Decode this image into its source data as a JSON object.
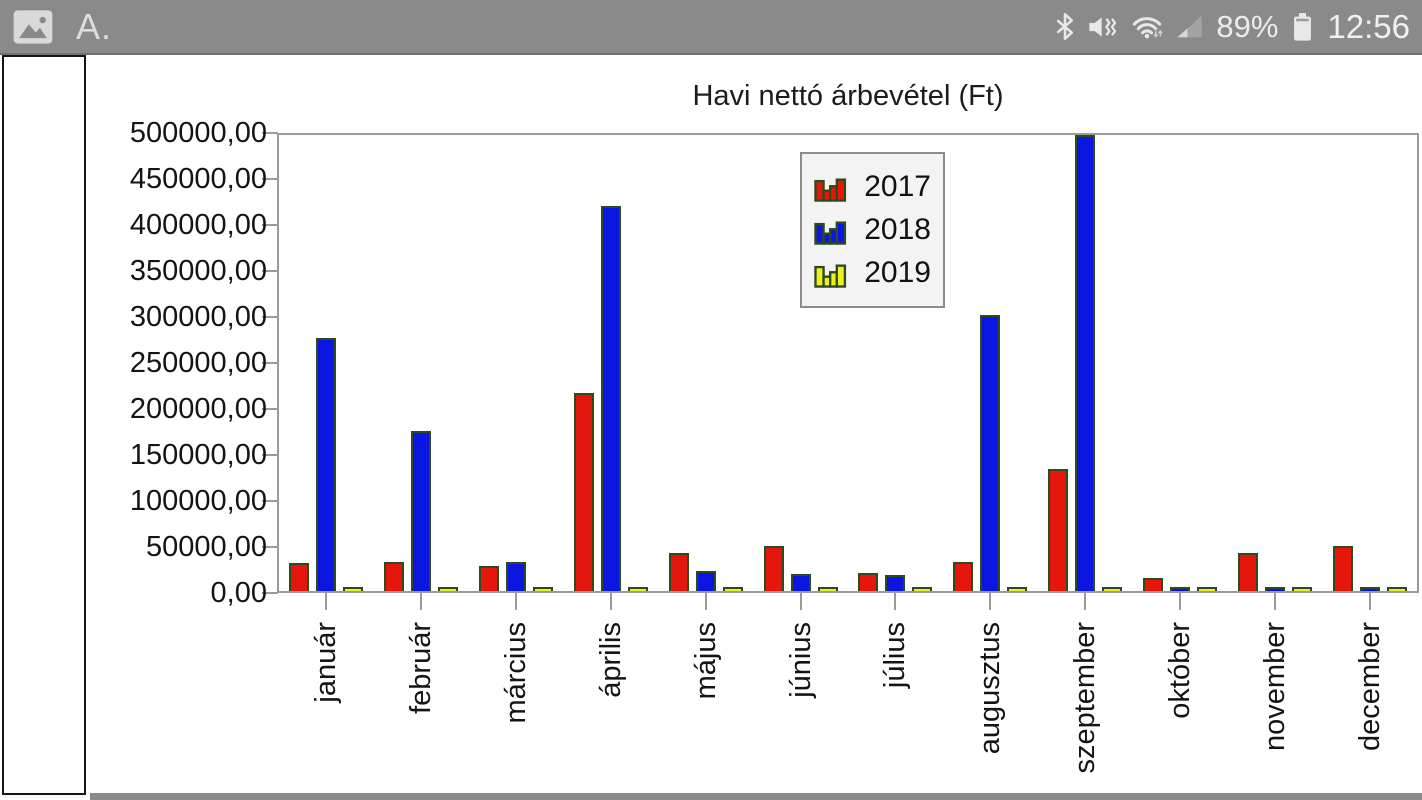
{
  "status_bar": {
    "bg_color": "#8a8a8a",
    "font_icon_label": "A.",
    "battery_percent": "89%",
    "time": "12:56",
    "icons": [
      "picture-icon",
      "font-icon",
      "bluetooth-icon",
      "mute-vibrate-icon",
      "wifi-icon",
      "signal-icon",
      "battery-icon"
    ]
  },
  "chart": {
    "title": "Havi nettó árbevétel (Ft)",
    "y_tick_labels": [
      "0,00",
      "50000,00",
      "100000,00",
      "150000,00",
      "200000,00",
      "250000,00",
      "300000,00",
      "350000,00",
      "400000,00",
      "450000,00",
      "500000,00"
    ],
    "legend": [
      {
        "label": "2017",
        "color": "#e5170c"
      },
      {
        "label": "2018",
        "color": "#0b16e3"
      },
      {
        "label": "2019",
        "color": "#eff024"
      }
    ],
    "bar_border_color": "#2e4b1c",
    "axis_color": "#9b9b9b"
  },
  "chart_data": {
    "type": "bar",
    "title": "Havi nettó árbevétel (Ft)",
    "categories": [
      "január",
      "február",
      "március",
      "április",
      "május",
      "június",
      "július",
      "augusztus",
      "szeptember",
      "október",
      "november",
      "december"
    ],
    "series": [
      {
        "name": "2017",
        "color": "#e5170c",
        "values": [
          28000,
          30000,
          25000,
          215000,
          40000,
          47000,
          18000,
          30000,
          132000,
          12000,
          40000,
          47000
        ]
      },
      {
        "name": "2018",
        "color": "#0b16e3",
        "values": [
          275000,
          173000,
          30000,
          420000,
          20000,
          16000,
          15000,
          300000,
          500000,
          2000,
          2000,
          2000
        ]
      },
      {
        "name": "2019",
        "color": "#eff024",
        "values": [
          2000,
          2000,
          2000,
          2000,
          2000,
          2000,
          2000,
          2000,
          2000,
          2000,
          2000,
          2000
        ]
      }
    ],
    "ylim": [
      0,
      500000
    ],
    "y_step": 50000,
    "grid": false,
    "legend_position": "upper-center",
    "x_label_rotation": 90
  }
}
